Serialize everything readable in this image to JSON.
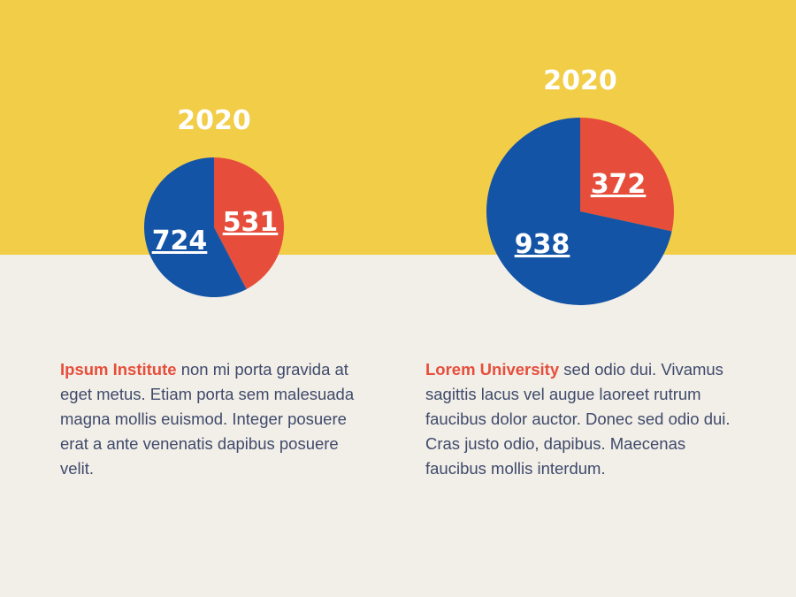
{
  "colors": {
    "background_top": "#f2cd48",
    "background_bottom": "#f2efe8",
    "series_red": "#e64e3b",
    "series_blue": "#1454a6",
    "org_name": "#e64e3b",
    "body_text": "#3f4a6b"
  },
  "chart_data": [
    {
      "type": "pie",
      "title": "2020",
      "slices": [
        {
          "label": "531",
          "value": 531,
          "color": "#e64e3b"
        },
        {
          "label": "724",
          "value": 724,
          "color": "#1454a6"
        }
      ]
    },
    {
      "type": "pie",
      "title": "2020",
      "slices": [
        {
          "label": "372",
          "value": 372,
          "color": "#e64e3b"
        },
        {
          "label": "938",
          "value": 938,
          "color": "#1454a6"
        }
      ]
    }
  ],
  "descriptions": [
    {
      "org": "Ipsum Institute",
      "text": " non mi porta gravida at eget metus. Etiam porta sem malesuada magna mollis euismod. Integer posuere erat a ante venenatis dapibus posuere velit."
    },
    {
      "org": "Lorem University",
      "text": " sed odio dui. Vivamus sagittis lacus vel augue laoreet rutrum faucibus dolor auctor. Donec sed odio dui. Cras justo odio, dapibus. Maecenas faucibus mollis interdum."
    }
  ]
}
